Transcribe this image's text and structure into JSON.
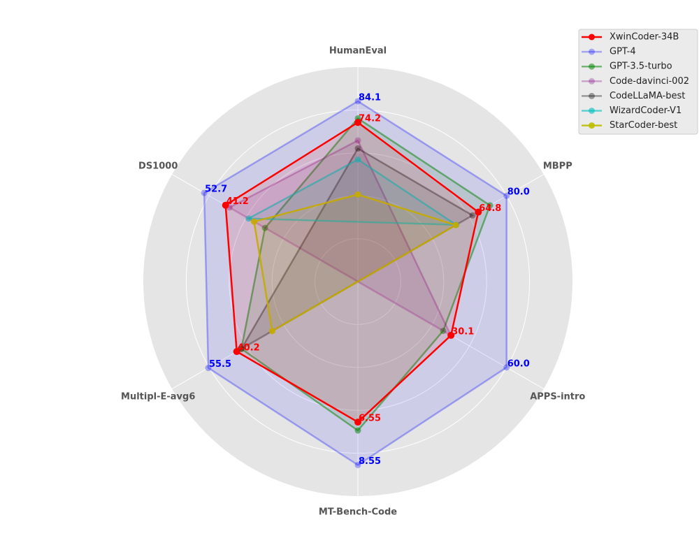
{
  "chart_data": {
    "type": "radar",
    "axes": [
      "HumanEval",
      "MBPP",
      "APPS-intro",
      "MT-Bench-Code",
      "Multipl-E-avg6",
      "DS1000"
    ],
    "grid": true,
    "legend_placement": "top-right",
    "series": [
      {
        "name": "XwinCoder-34B",
        "color": "#ff0000",
        "alpha": 1.0,
        "values": [
          74.2,
          64.8,
          30.1,
          6.55,
          40.2,
          41.2
        ],
        "labels": [
          "74.2",
          "64.8",
          "30.1",
          "6.55",
          "40.2",
          "41.2"
        ]
      },
      {
        "name": "GPT-4",
        "color": "#0000ff",
        "alpha": 0.3,
        "values": [
          84.1,
          80.0,
          60.0,
          8.55,
          55.5,
          52.7
        ],
        "labels": [
          "84.1",
          "80.0",
          "60.0",
          "8.55",
          "55.5",
          "52.7"
        ]
      },
      {
        "name": "GPT-3.5-turbo",
        "color": "#008000",
        "alpha": 0.5,
        "values": [
          76.1,
          71.1,
          25.9,
          6.94,
          37.7,
          20.0
        ]
      },
      {
        "name": "Code-davinci-002",
        "color": "#800080",
        "alpha": 0.3,
        "values": [
          65.8,
          null,
          29.9,
          null,
          null,
          39.1
        ]
      },
      {
        "name": "CodeLLaMA-best",
        "color": "#000000",
        "alpha": 0.35,
        "values": [
          62.1,
          61.7,
          null,
          null,
          37.7,
          null
        ]
      },
      {
        "name": "WizardCoder-V1",
        "color": "#00bfbf",
        "alpha": 0.6,
        "values": [
          56.9,
          52.9,
          null,
          null,
          null,
          28.8
        ]
      },
      {
        "name": "StarCoder-best",
        "color": "#bfbf00",
        "alpha": 0.9,
        "values": [
          40.6,
          52.7,
          null,
          null,
          21.1,
          25.9
        ]
      }
    ]
  }
}
